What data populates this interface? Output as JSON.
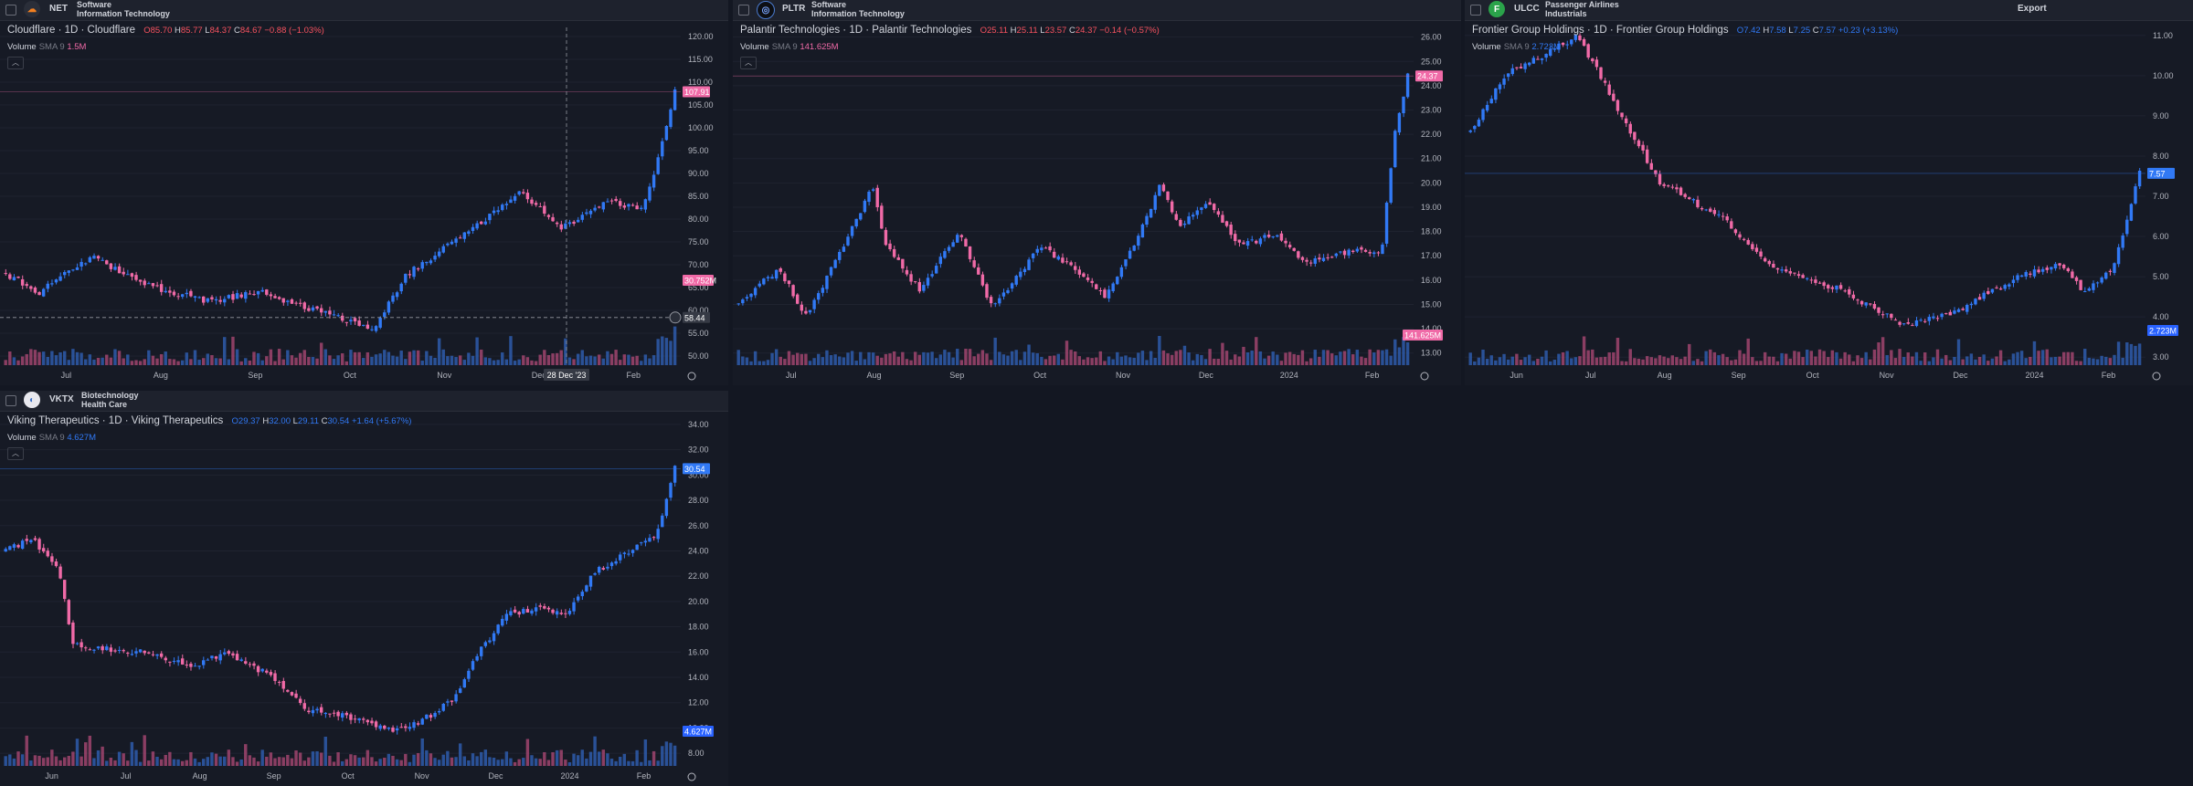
{
  "toolbar": {
    "export_label": "Export"
  },
  "charts": [
    {
      "ticker": "NET",
      "sector_line1": "Software",
      "sector_line2": "Information Technology",
      "title": "Cloudflare · 1D · Cloudflare",
      "ohlc": {
        "o": "85.70",
        "h": "85.77",
        "l": "84.37",
        "c": "84.67",
        "chg": "−0.88 (−1.03%)"
      },
      "volume_label": "Volume",
      "sma_label": "SMA 9",
      "volume_value": "1.5M",
      "price_label": "107.91",
      "vol_label": "30.752M",
      "cursor_label": "58.44",
      "date_label": "28 Dec '23",
      "y_ticks": [
        "120.00",
        "115.00",
        "110.00",
        "105.00",
        "100.00",
        "95.00",
        "90.00",
        "85.00",
        "80.00",
        "75.00",
        "70.00",
        "65.00",
        "60.00",
        "55.00",
        "50.00"
      ],
      "x_labels": [
        "Jul",
        "Aug",
        "Sep",
        "Oct",
        "Nov",
        "Dec",
        "Feb"
      ],
      "logo_color": "#f38020",
      "logo_glyph": "☁",
      "change_dir": "neg"
    },
    {
      "ticker": "PLTR",
      "sector_line1": "Software",
      "sector_line2": "Information Technology",
      "title": "Palantir Technologies · 1D · Palantir Technologies",
      "ohlc": {
        "o": "25.11",
        "h": "25.11",
        "l": "23.57",
        "c": "24.37",
        "chg": "−0.14 (−0.57%)"
      },
      "volume_label": "Volume",
      "sma_label": "SMA 9",
      "volume_value": "141.625M",
      "price_label": "24.37",
      "vol_label": "141.625M",
      "y_ticks": [
        "26.00",
        "25.00",
        "24.00",
        "23.00",
        "22.00",
        "21.00",
        "20.00",
        "19.00",
        "18.00",
        "17.00",
        "16.00",
        "15.00",
        "14.00",
        "13.00"
      ],
      "x_labels": [
        "Jul",
        "Aug",
        "Sep",
        "Oct",
        "Nov",
        "Dec",
        "2024",
        "Feb"
      ],
      "logo_color": "#101010",
      "logo_glyph": "◎",
      "change_dir": "neg"
    },
    {
      "ticker": "ULCC",
      "sector_line1": "Passenger Airlines",
      "sector_line2": "Industrials",
      "title": "Frontier Group Holdings · 1D · Frontier Group Holdings",
      "ohlc": {
        "o": "7.42",
        "h": "7.58",
        "l": "7.25",
        "c": "7.57",
        "chg": "+0.23 (+3.13%)"
      },
      "volume_label": "Volume",
      "sma_label": "SMA 9",
      "volume_value": "2.723M",
      "price_label": "7.57",
      "vol_label": "2.723M",
      "y_ticks": [
        "11.00",
        "10.00",
        "9.00",
        "8.00",
        "7.00",
        "6.00",
        "5.00",
        "4.00",
        "3.00"
      ],
      "x_labels": [
        "Jun",
        "Jul",
        "Aug",
        "Sep",
        "Oct",
        "Nov",
        "Dec",
        "2024",
        "Feb"
      ],
      "logo_color": "#2aa34a",
      "logo_glyph": "F",
      "change_dir": "pos"
    },
    {
      "ticker": "VKTX",
      "sector_line1": "Biotechnology",
      "sector_line2": "Health Care",
      "title": "Viking Therapeutics · 1D · Viking Therapeutics",
      "ohlc": {
        "o": "29.37",
        "h": "32.00",
        "l": "29.11",
        "c": "30.54",
        "chg": "+1.64 (+5.67%)"
      },
      "volume_label": "Volume",
      "sma_label": "SMA 9",
      "volume_value": "4.627M",
      "price_label": "30.54",
      "vol_label": "4.627M",
      "y_ticks": [
        "34.00",
        "32.00",
        "30.00",
        "28.00",
        "26.00",
        "24.00",
        "22.00",
        "20.00",
        "18.00",
        "16.00",
        "14.00",
        "12.00",
        "10.00",
        "8.00"
      ],
      "x_labels": [
        "Jun",
        "Jul",
        "Aug",
        "Sep",
        "Oct",
        "Nov",
        "Dec",
        "2024",
        "Feb"
      ],
      "logo_color": "#e8e8ee",
      "logo_glyph": "◐",
      "change_dir": "pos"
    }
  ],
  "colors": {
    "up": "#3179f5",
    "down": "#f06aa7",
    "up_vol": "#2e5cab",
    "down_vol": "#a0456f",
    "bg": "#161a25",
    "grid": "#1f2330",
    "axis_text": "#b2b5be"
  }
}
